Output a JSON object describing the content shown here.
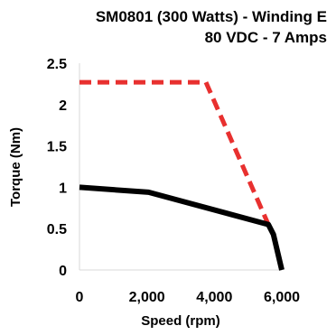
{
  "chart_data": {
    "type": "line",
    "title_line1": "SM0801 (300 Watts)  -  Winding E",
    "title_line2": "80 VDC -  7 Amps",
    "xlabel": "Speed (rpm)",
    "ylabel": "Torque (Nm)",
    "xlim": [
      0,
      6000
    ],
    "ylim": [
      0,
      2.5
    ],
    "x_ticks": [
      0,
      2000,
      4000,
      6000
    ],
    "x_tick_labels": [
      "0",
      "2,000",
      "4,000",
      "6,000"
    ],
    "y_ticks": [
      0,
      0.5,
      1,
      1.5,
      2,
      2.5
    ],
    "y_tick_labels": [
      "0",
      "0.5",
      "1",
      "1.5",
      "2",
      "2.5"
    ],
    "grid": false,
    "series": [
      {
        "style": "dashed",
        "color": "#e8302f",
        "points": [
          [
            0,
            2.27
          ],
          [
            3750,
            2.27
          ],
          [
            5600,
            0.55
          ]
        ]
      },
      {
        "style": "solid",
        "color": "#000000",
        "points": [
          [
            0,
            1.0
          ],
          [
            2050,
            0.94
          ],
          [
            5600,
            0.55
          ],
          [
            5750,
            0.43
          ],
          [
            6000,
            0.0
          ]
        ]
      }
    ]
  }
}
